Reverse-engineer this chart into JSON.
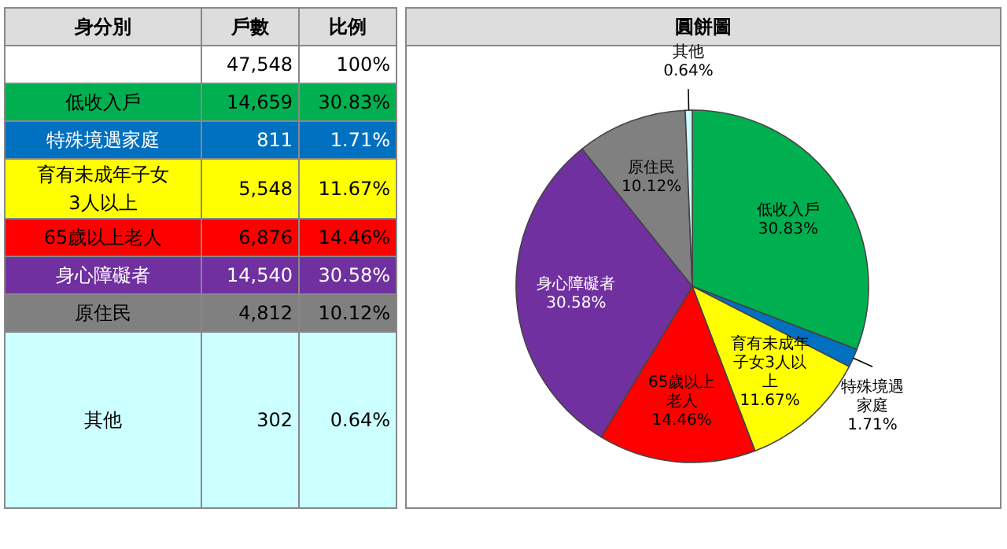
{
  "chart_data": [
    {
      "type": "other",
      "annotations": [
        "身分別"
      ],
      "categories": [
        "低收入戶",
        "特殊境遇家庭",
        "育有未成年子女3人以上",
        "65歲以上老人",
        "身心障礙者",
        "原住民",
        "其他"
      ],
      "series": [
        {
          "name": "戶數",
          "values": [
            14659,
            811,
            5548,
            6876,
            14540,
            4812,
            302
          ],
          "colors": [
            "#00b050",
            "#0070c0",
            "#ffff00",
            "#ff0000",
            "#7030a0",
            "#808080",
            "#ccffff"
          ],
          "value_labels": [
            "14,659",
            "811",
            "5,548",
            "6,876",
            "14,540",
            "4,812",
            "302"
          ]
        },
        {
          "name": "比例",
          "values": [
            30.83,
            1.71,
            11.67,
            14.46,
            30.58,
            10.12,
            0.64
          ],
          "colors": [
            "#00b050",
            "#0070c0",
            "#ffff00",
            "#ff0000",
            "#7030a0",
            "#808080",
            "#ccffff"
          ],
          "value_labels": [
            "30.83%",
            "1.71%",
            "11.67%",
            "14.46%",
            "30.58%",
            "10.12%",
            "0.64%"
          ]
        }
      ],
      "colors": [
        "#00b050",
        "#0070c0",
        "#ffff00",
        "#ff0000",
        "#7030a0",
        "#808080",
        "#ccffff"
      ],
      "totals": [
        "47,548",
        "100%"
      ]
    },
    {
      "type": "pie",
      "title": "圓餅圖",
      "categories": [
        "低收入戶",
        "特殊境遇家庭",
        "育有未成年子女3人以上",
        "65歲以上老人",
        "身心障礙者",
        "原住民",
        "其他"
      ],
      "values": [
        30.83,
        1.71,
        11.67,
        14.46,
        30.58,
        10.12,
        0.64
      ],
      "value_labels": [
        "30.83%",
        "1.71%",
        "11.67%",
        "14.46%",
        "30.58%",
        "10.12%",
        "0.64%"
      ],
      "colors": [
        "#00b050",
        "#0070c0",
        "#ffff00",
        "#ff0000",
        "#7030a0",
        "#808080",
        "#ccffff"
      ]
    }
  ]
}
